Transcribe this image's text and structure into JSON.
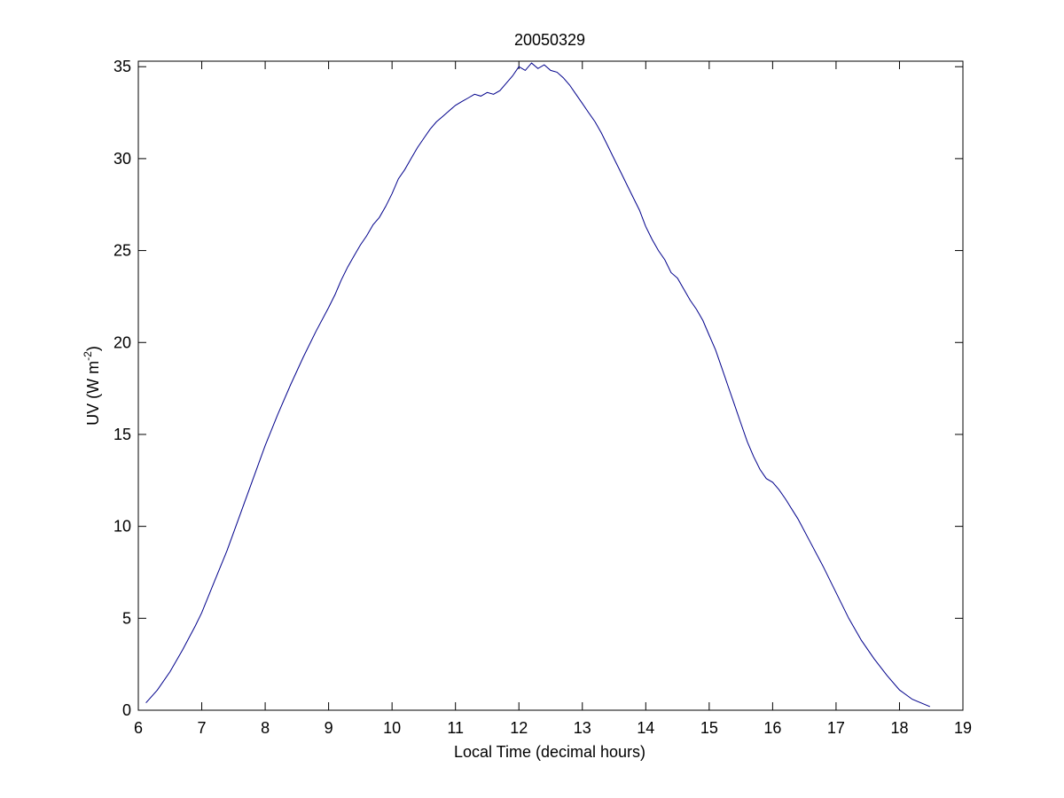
{
  "chart_data": {
    "type": "line",
    "title": "20050329",
    "xlabel": "Local Time (decimal hours)",
    "ylabel": {
      "main": "UV (W m",
      "superscript": "-2",
      "close": ")"
    },
    "xlim": [
      6,
      19
    ],
    "ylim": [
      0,
      35.3
    ],
    "xticks": [
      6,
      7,
      8,
      9,
      10,
      11,
      12,
      13,
      14,
      15,
      16,
      17,
      18,
      19
    ],
    "yticks": [
      0,
      5,
      10,
      15,
      20,
      25,
      30,
      35
    ],
    "grid": false,
    "line_color": "#00008b",
    "series": [
      {
        "x": [
          6.12,
          6.3,
          6.5,
          6.7,
          6.9,
          7.0,
          7.2,
          7.4,
          7.6,
          7.8,
          8.0,
          8.2,
          8.4,
          8.6,
          8.8,
          9.0,
          9.1,
          9.2,
          9.3,
          9.4,
          9.5,
          9.6,
          9.7,
          9.8,
          9.9,
          10.0,
          10.1,
          10.2,
          10.3,
          10.4,
          10.5,
          10.6,
          10.7,
          10.8,
          10.9,
          11.0,
          11.1,
          11.2,
          11.3,
          11.4,
          11.5,
          11.6,
          11.7,
          11.8,
          11.9,
          12.0,
          12.1,
          12.2,
          12.3,
          12.4,
          12.5,
          12.6,
          12.7,
          12.8,
          12.9,
          13.0,
          13.1,
          13.2,
          13.3,
          13.4,
          13.5,
          13.6,
          13.7,
          13.8,
          13.9,
          14.0,
          14.1,
          14.2,
          14.3,
          14.4,
          14.5,
          14.6,
          14.7,
          14.8,
          14.9,
          15.0,
          15.1,
          15.2,
          15.3,
          15.4,
          15.5,
          15.6,
          15.7,
          15.8,
          15.9,
          16.0,
          16.1,
          16.2,
          16.4,
          16.6,
          16.8,
          17.0,
          17.2,
          17.4,
          17.6,
          17.8,
          18.0,
          18.2,
          18.48
        ],
        "y": [
          0.4,
          1.1,
          2.1,
          3.3,
          4.6,
          5.3,
          7.0,
          8.7,
          10.6,
          12.5,
          14.4,
          16.1,
          17.7,
          19.2,
          20.6,
          21.9,
          22.6,
          23.4,
          24.1,
          24.7,
          25.3,
          25.8,
          26.4,
          26.8,
          27.4,
          28.1,
          28.9,
          29.4,
          30.0,
          30.6,
          31.1,
          31.6,
          32.0,
          32.3,
          32.6,
          32.9,
          33.1,
          33.3,
          33.5,
          33.4,
          33.6,
          33.5,
          33.7,
          34.1,
          34.5,
          35.0,
          34.8,
          35.2,
          34.9,
          35.1,
          34.8,
          34.7,
          34.4,
          34.0,
          33.5,
          33.0,
          32.5,
          32.0,
          31.4,
          30.7,
          30.0,
          29.3,
          28.6,
          27.9,
          27.2,
          26.3,
          25.6,
          25.0,
          24.5,
          23.8,
          23.5,
          22.9,
          22.3,
          21.8,
          21.2,
          20.4,
          19.6,
          18.6,
          17.6,
          16.6,
          15.6,
          14.6,
          13.8,
          13.1,
          12.6,
          12.4,
          12.0,
          11.5,
          10.4,
          9.1,
          7.8,
          6.4,
          5.0,
          3.8,
          2.8,
          1.9,
          1.1,
          0.6,
          0.2
        ]
      }
    ]
  }
}
